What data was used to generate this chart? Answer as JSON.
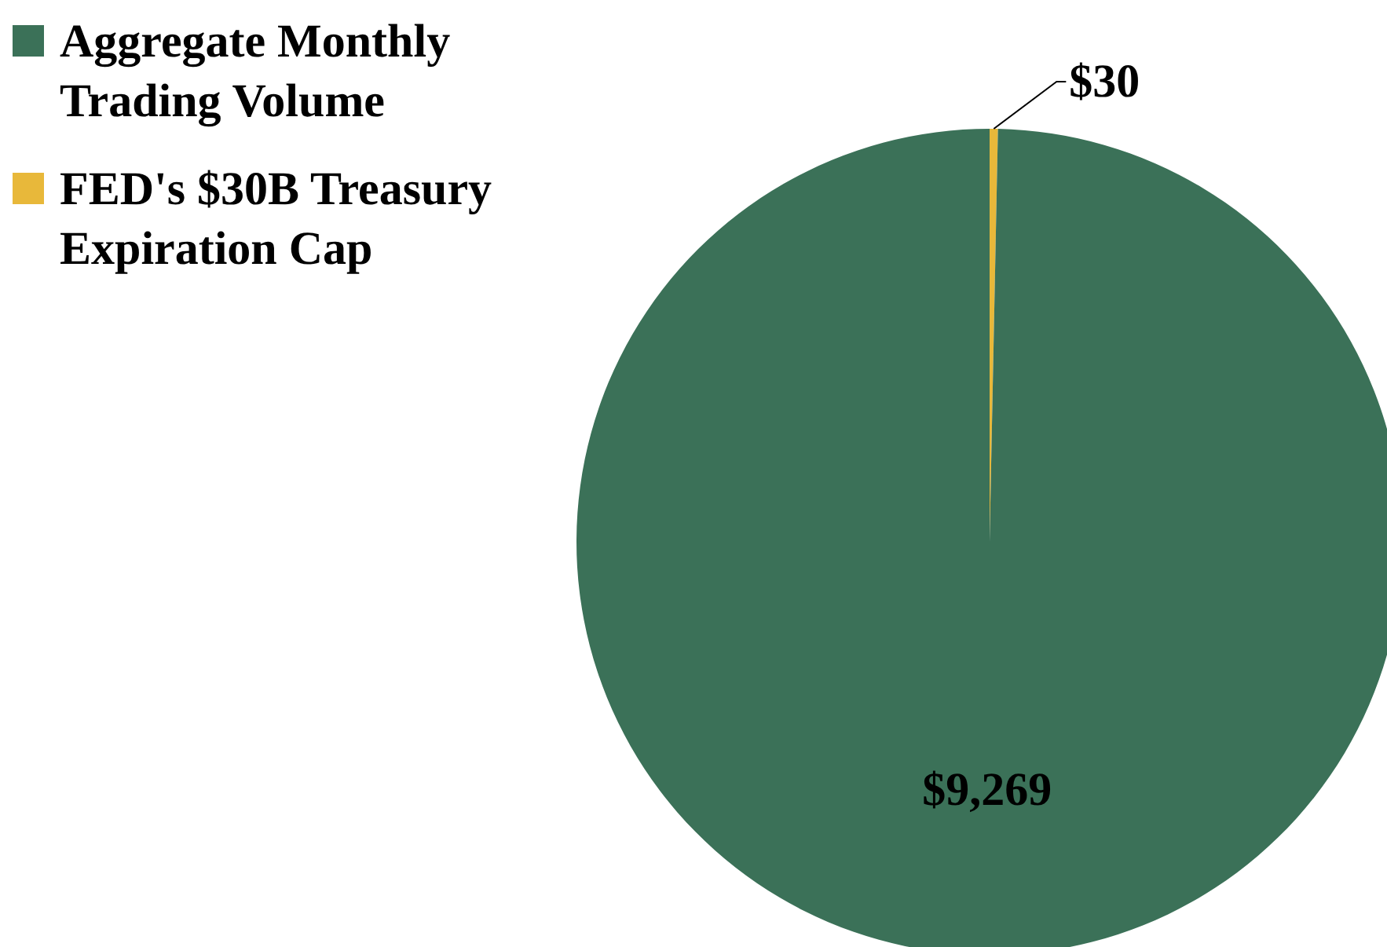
{
  "chart_data": {
    "type": "pie",
    "categories": [
      "FED's $30B Treasury Expiration Cap",
      "Aggregate Monthly Trading Volume"
    ],
    "values": [
      30,
      9269
    ],
    "colors": [
      "#e8b83a",
      "#3b7158"
    ],
    "value_labels": [
      "$30",
      "$9,269"
    ],
    "legend": "top left"
  }
}
